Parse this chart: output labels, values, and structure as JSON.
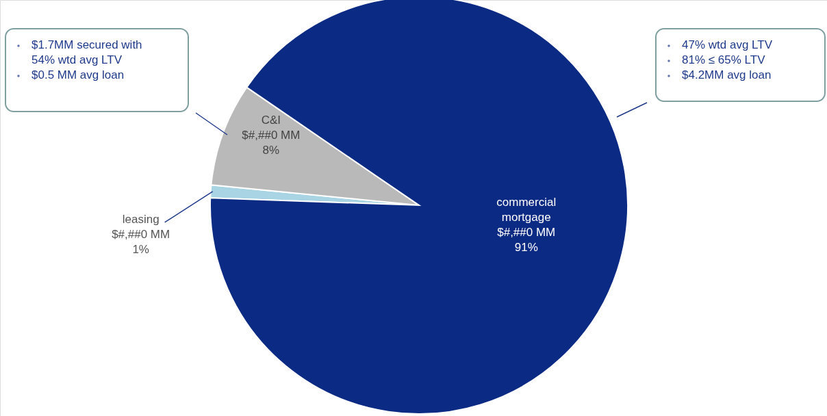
{
  "chart_data": {
    "type": "pie",
    "categories": [
      "leasing",
      "C&I",
      "commercial\nmortgage"
    ],
    "values": [
      1,
      8,
      91
    ],
    "colors": [
      "#a9d4e4",
      "#b9b9b9",
      "#0b2a84"
    ],
    "value_labels": [
      "$#,##0 MM\n1%",
      "$#,##0 MM\n8%",
      "$#,##0 MM\n91%"
    ],
    "annotations": [
      "$1.7MM secured with\n54% wtd avg LTV",
      "$0.5 MM avg loan",
      "47% wtd avg LTV",
      "81% ≤ 65% LTV",
      "$4.2MM avg loan"
    ]
  }
}
